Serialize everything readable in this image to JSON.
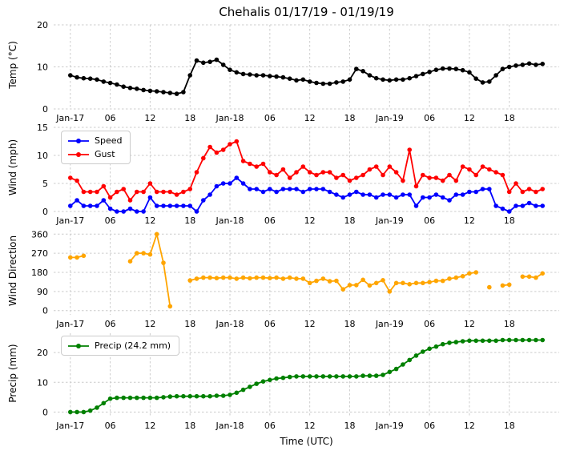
{
  "title": "Chehalis 01/17/19 - 01/19/19",
  "xlabel": "Time (UTC)",
  "x_axis": {
    "lim": [
      -2.5,
      73.5
    ],
    "ticks": [
      0,
      6,
      12,
      18,
      24,
      30,
      36,
      42,
      48,
      54,
      60,
      66
    ],
    "labels": [
      "Jan-17",
      "06",
      "12",
      "18",
      "Jan-18",
      "06",
      "12",
      "18",
      "Jan-19",
      "06",
      "12",
      "18"
    ]
  },
  "x_hours": [
    0,
    1,
    2,
    3,
    4,
    5,
    6,
    7,
    8,
    9,
    10,
    11,
    12,
    13,
    14,
    15,
    16,
    17,
    18,
    19,
    20,
    21,
    22,
    23,
    24,
    25,
    26,
    27,
    28,
    29,
    30,
    31,
    32,
    33,
    34,
    35,
    36,
    37,
    38,
    39,
    40,
    41,
    42,
    43,
    44,
    45,
    46,
    47,
    48,
    49,
    50,
    51,
    52,
    53,
    54,
    55,
    56,
    57,
    58,
    59,
    60,
    61,
    62,
    63,
    64,
    65,
    66,
    67,
    68,
    69,
    70,
    71
  ],
  "chart_data": [
    {
      "type": "line",
      "ylabel": "Temp (°C)",
      "ylim": [
        0,
        20
      ],
      "yticks": [
        0,
        10,
        20
      ],
      "grid": true,
      "series": [
        {
          "name": "Temp",
          "color": "#000000",
          "values": [
            8.0,
            7.5,
            7.3,
            7.2,
            7.0,
            6.5,
            6.2,
            5.8,
            5.3,
            5.0,
            4.8,
            4.5,
            4.3,
            4.2,
            4.0,
            3.8,
            3.6,
            4.0,
            8.0,
            11.5,
            11.0,
            11.2,
            11.7,
            10.5,
            9.3,
            8.7,
            8.3,
            8.2,
            8.0,
            8.0,
            7.8,
            7.7,
            7.5,
            7.2,
            6.8,
            7.0,
            6.5,
            6.2,
            6.0,
            6.0,
            6.3,
            6.5,
            7.0,
            9.5,
            9.0,
            8.0,
            7.3,
            7.0,
            6.8,
            7.0,
            7.0,
            7.3,
            7.8,
            8.3,
            8.8,
            9.3,
            9.6,
            9.6,
            9.5,
            9.2,
            8.7,
            7.2,
            6.3,
            6.5,
            8.0,
            9.5,
            10.0,
            10.3,
            10.5,
            10.8,
            10.5,
            10.7
          ]
        }
      ]
    },
    {
      "type": "line",
      "ylabel": "Wind (mph)",
      "ylim": [
        0,
        15
      ],
      "yticks": [
        0,
        5,
        10,
        15
      ],
      "grid": true,
      "legend_position": "upper-left",
      "series": [
        {
          "name": "Speed",
          "color": "#0000ff",
          "values": [
            1.0,
            2.0,
            1.0,
            1.0,
            1.0,
            2.0,
            0.5,
            0.0,
            0.0,
            0.5,
            0.0,
            0.0,
            2.5,
            1.0,
            1.0,
            1.0,
            1.0,
            1.0,
            1.0,
            0.0,
            2.0,
            3.0,
            4.5,
            5.0,
            5.0,
            6.0,
            5.0,
            4.0,
            4.0,
            3.5,
            4.0,
            3.5,
            4.0,
            4.0,
            4.0,
            3.5,
            4.0,
            4.0,
            4.0,
            3.5,
            3.0,
            2.5,
            3.0,
            3.5,
            3.0,
            3.0,
            2.5,
            3.0,
            3.0,
            2.5,
            3.0,
            3.0,
            1.0,
            2.5,
            2.5,
            3.0,
            2.5,
            2.0,
            3.0,
            3.0,
            3.5,
            3.5,
            4.0,
            4.0,
            1.0,
            0.5,
            0.0,
            1.0,
            1.0,
            1.5,
            1.0,
            1.0
          ]
        },
        {
          "name": "Gust",
          "color": "#ff0000",
          "values": [
            6.0,
            5.5,
            3.5,
            3.5,
            3.5,
            4.5,
            2.5,
            3.5,
            4.0,
            2.0,
            3.5,
            3.5,
            5.0,
            3.5,
            3.5,
            3.5,
            3.0,
            3.5,
            4.0,
            7.0,
            9.5,
            11.5,
            10.5,
            11.0,
            12.0,
            12.5,
            9.0,
            8.5,
            8.0,
            8.5,
            7.0,
            6.5,
            7.5,
            6.0,
            7.0,
            8.0,
            7.0,
            6.5,
            7.0,
            7.0,
            6.0,
            6.5,
            5.5,
            6.0,
            6.5,
            7.5,
            8.0,
            6.5,
            8.0,
            7.0,
            5.5,
            11.0,
            4.5,
            6.5,
            6.0,
            6.0,
            5.5,
            6.5,
            5.5,
            8.0,
            7.5,
            6.5,
            8.0,
            7.5,
            7.0,
            6.5,
            3.5,
            5.0,
            3.5,
            4.0,
            3.5,
            4.0
          ]
        }
      ]
    },
    {
      "type": "line",
      "ylabel": "Wind Direction",
      "ylim": [
        -20,
        380
      ],
      "yticks": [
        0,
        90,
        180,
        270,
        360
      ],
      "grid": true,
      "series": [
        {
          "name": "Wind Direction",
          "color": "#ffa500",
          "values": [
            250,
            250,
            258,
            null,
            null,
            null,
            null,
            null,
            null,
            232,
            270,
            270,
            264,
            360,
            225,
            20,
            null,
            null,
            142,
            150,
            155,
            155,
            153,
            155,
            155,
            150,
            155,
            152,
            155,
            155,
            153,
            155,
            150,
            155,
            150,
            150,
            130,
            140,
            150,
            138,
            140,
            100,
            120,
            120,
            145,
            118,
            130,
            143,
            90,
            130,
            130,
            124,
            130,
            130,
            134,
            140,
            140,
            150,
            155,
            162,
            175,
            180,
            null,
            110,
            null,
            118,
            122,
            null,
            160,
            160,
            155,
            175
          ]
        }
      ]
    },
    {
      "type": "line",
      "ylabel": "Precip (mm)",
      "ylim": [
        -1.5,
        26.5
      ],
      "yticks": [
        0,
        10,
        20
      ],
      "grid": true,
      "legend_position": "upper-left",
      "series": [
        {
          "name": "Precip (24.2 mm)",
          "color": "#008000",
          "total_mm": 24.2,
          "values": [
            0,
            0,
            0,
            0.5,
            1.5,
            3.0,
            4.5,
            4.8,
            4.8,
            4.8,
            4.8,
            4.8,
            4.8,
            4.8,
            5.0,
            5.2,
            5.3,
            5.3,
            5.3,
            5.3,
            5.3,
            5.3,
            5.5,
            5.5,
            5.8,
            6.5,
            7.5,
            8.5,
            9.5,
            10.3,
            10.8,
            11.3,
            11.5,
            11.8,
            12.0,
            12.0,
            12.0,
            12.0,
            12.0,
            12.0,
            12.0,
            12.0,
            12.0,
            12.0,
            12.2,
            12.2,
            12.2,
            12.5,
            13.5,
            14.5,
            16.0,
            17.5,
            19.0,
            20.3,
            21.3,
            22.0,
            22.8,
            23.3,
            23.5,
            23.8,
            24.0,
            24.0,
            24.0,
            24.0,
            24.0,
            24.2,
            24.2,
            24.2,
            24.2,
            24.2,
            24.2,
            24.2
          ]
        }
      ]
    }
  ]
}
